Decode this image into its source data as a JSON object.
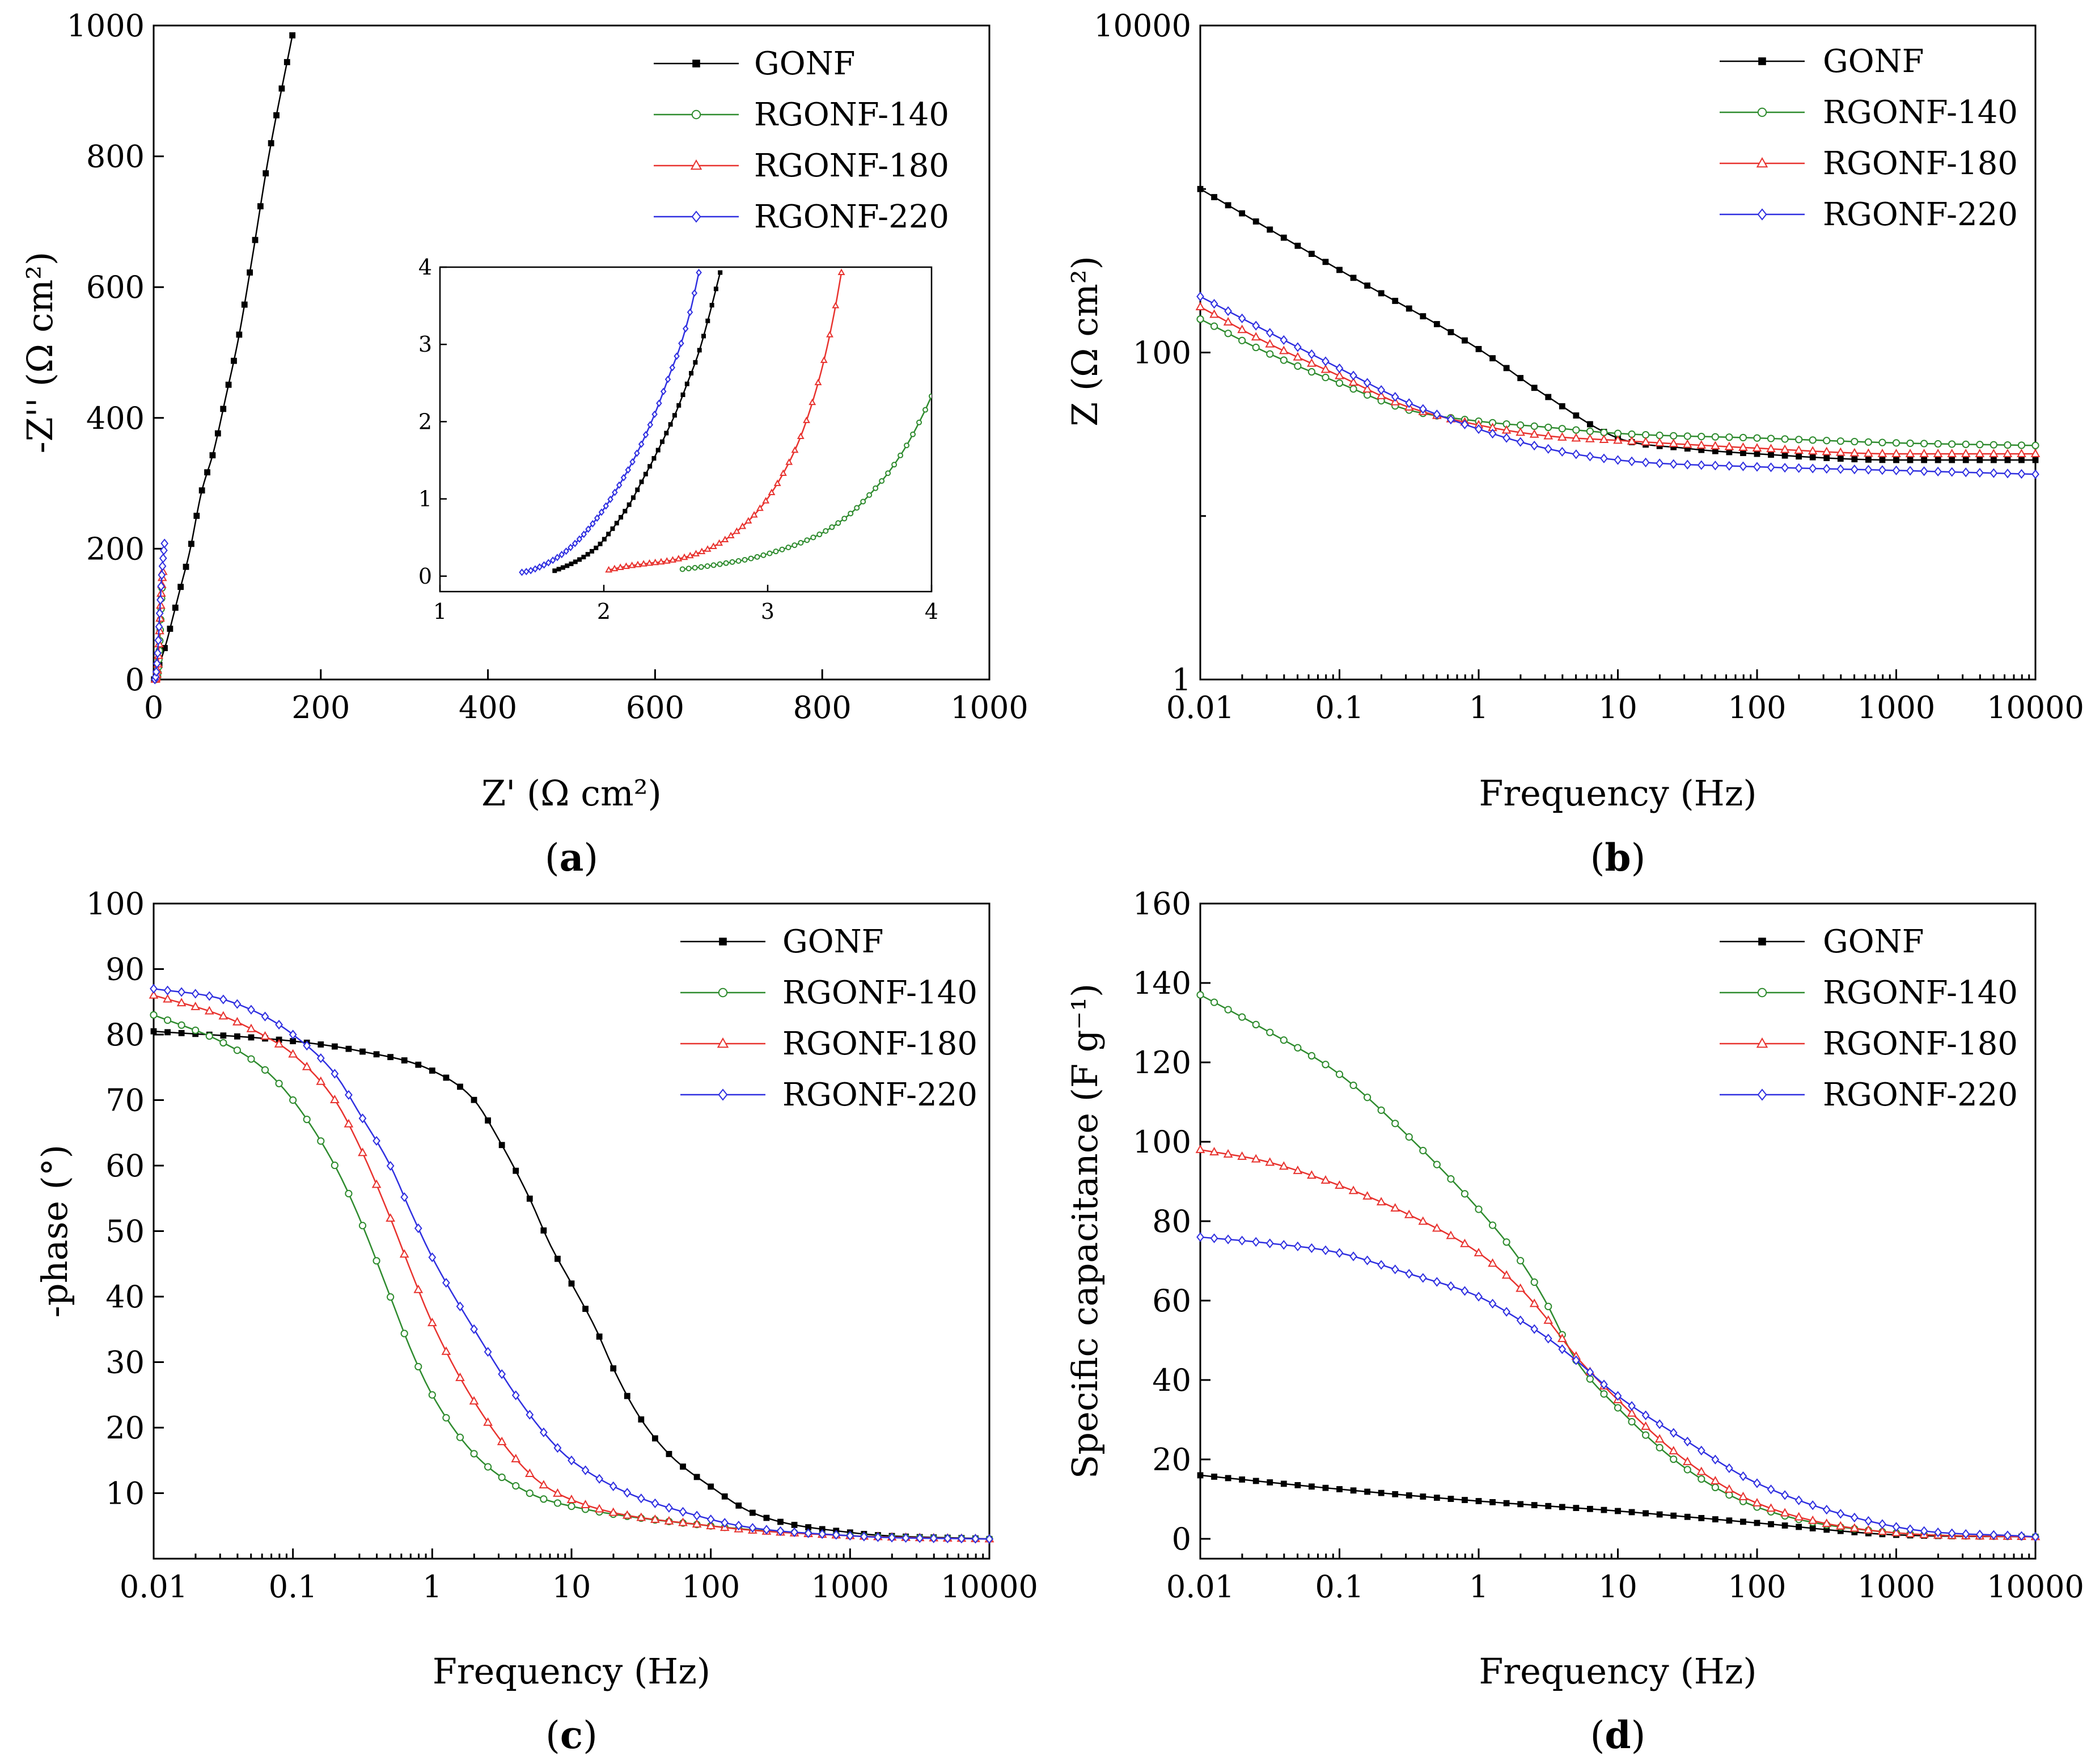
{
  "colors": {
    "GONF": "#000000",
    "RGONF-140": "#2e8b2e",
    "RGONF-180": "#e8322e",
    "RGONF-220": "#2f2fe0"
  },
  "chart_data": [
    {
      "panel": "a",
      "panel_label": "a",
      "type": "scatter",
      "title": "",
      "xlabel": "Z' (Ω cm²)",
      "ylabel": "-Z'' (Ω cm²)",
      "xlim": [
        0,
        1000
      ],
      "ylim": [
        0,
        1000
      ],
      "xticks": [
        "0",
        "200",
        "400",
        "600",
        "800",
        "1000"
      ],
      "yticks": [
        "0",
        "200",
        "400",
        "600",
        "800",
        "1000"
      ],
      "legend_position": "top-right",
      "series": [
        {
          "name": "GONF",
          "marker": "square",
          "x": [
            0.5,
            2,
            5,
            10,
            16,
            23,
            32,
            43,
            57,
            72,
            86,
            102,
            118,
            137,
            166
          ],
          "y": [
            0.2,
            5,
            15,
            35,
            60,
            95,
            140,
            195,
            285,
            350,
            430,
            525,
            645,
            795,
            985
          ]
        },
        {
          "name": "RGONF-140",
          "marker": "circle",
          "x": [
            2.5,
            3,
            4,
            5,
            6,
            7,
            8,
            9,
            10
          ],
          "y": [
            0.1,
            0.5,
            2,
            8,
            25,
            50,
            80,
            110,
            140
          ]
        },
        {
          "name": "RGONF-180",
          "marker": "triangle",
          "x": [
            2,
            3,
            4,
            5,
            6,
            7,
            8,
            9,
            10,
            11
          ],
          "y": [
            0.1,
            2,
            8,
            20,
            40,
            70,
            100,
            130,
            150,
            165
          ]
        },
        {
          "name": "RGONF-220",
          "marker": "diamond",
          "x": [
            1.5,
            2,
            3,
            4,
            5,
            6,
            7,
            8,
            9,
            10,
            11,
            12,
            13
          ],
          "y": [
            0.1,
            2,
            10,
            25,
            45,
            70,
            95,
            120,
            145,
            165,
            180,
            195,
            208
          ]
        }
      ],
      "inset": {
        "xlim": [
          1,
          4
        ],
        "ylim": [
          -0.2,
          4
        ],
        "xticks": [
          "1",
          "2",
          "3",
          "4"
        ],
        "yticks": [
          "0",
          "1",
          "2",
          "3",
          "4"
        ],
        "series": [
          {
            "name": "GONF",
            "marker": "square",
            "x": [
              1.7,
              1.76,
              1.83,
              1.9,
              1.97,
              2.03,
              2.1,
              2.17,
              2.23,
              2.3,
              2.37,
              2.44,
              2.51,
              2.58,
              2.64,
              2.71
            ],
            "y": [
              0.07,
              0.12,
              0.19,
              0.28,
              0.4,
              0.55,
              0.75,
              0.98,
              1.22,
              1.5,
              1.8,
              2.12,
              2.5,
              2.9,
              3.35,
              3.93
            ]
          },
          {
            "name": "RGONF-140",
            "marker": "circle",
            "x": [
              2.48,
              2.6,
              2.75,
              2.9,
              3.05,
              3.2,
              3.35,
              3.5,
              3.62,
              3.74,
              3.85,
              3.95,
              4.0
            ],
            "y": [
              0.09,
              0.12,
              0.17,
              0.23,
              0.32,
              0.43,
              0.58,
              0.8,
              1.05,
              1.35,
              1.7,
              2.1,
              2.33
            ]
          },
          {
            "name": "RGONF-180",
            "marker": "triangle",
            "x": [
              2.03,
              2.12,
              2.25,
              2.4,
              2.55,
              2.7,
              2.85,
              2.98,
              3.1,
              3.2,
              3.28,
              3.35,
              3.41,
              3.45
            ],
            "y": [
              0.08,
              0.12,
              0.16,
              0.2,
              0.28,
              0.42,
              0.65,
              0.95,
              1.35,
              1.8,
              2.3,
              2.85,
              3.45,
              3.93
            ]
          },
          {
            "name": "RGONF-220",
            "marker": "diamond",
            "x": [
              1.5,
              1.55,
              1.62,
              1.7,
              1.78,
              1.86,
              1.94,
              2.02,
              2.1,
              2.18,
              2.26,
              2.33,
              2.4,
              2.47,
              2.53,
              2.58
            ],
            "y": [
              0.05,
              0.07,
              0.13,
              0.22,
              0.34,
              0.5,
              0.7,
              0.93,
              1.2,
              1.5,
              1.85,
              2.2,
              2.6,
              3.0,
              3.45,
              3.93
            ]
          }
        ]
      }
    },
    {
      "panel": "b",
      "panel_label": "b",
      "type": "line",
      "title": "",
      "xlabel": "Frequency (Hz)",
      "ylabel": "Z (Ω cm²)",
      "xscale": "log",
      "yscale": "log",
      "xlim": [
        0.01,
        10000
      ],
      "ylim": [
        1,
        10000
      ],
      "xticks": [
        "0.01",
        "0.1",
        "1",
        "10",
        "100",
        "1000",
        "10000"
      ],
      "yticks": [
        "1",
        "100",
        "10000"
      ],
      "legend_position": "top-right",
      "series": [
        {
          "name": "GONF",
          "marker": "square",
          "x": [
            0.01,
            0.1,
            1,
            3,
            10,
            30,
            100,
            1000,
            10000
          ],
          "y": [
            1000,
            320,
            105,
            55,
            30,
            26,
            24,
            22,
            22
          ]
        },
        {
          "name": "RGONF-140",
          "marker": "circle",
          "x": [
            0.01,
            0.03,
            0.1,
            0.3,
            1,
            3,
            10,
            100,
            1000,
            10000
          ],
          "y": [
            160,
            100,
            65,
            45,
            38,
            35,
            32,
            30,
            28,
            27
          ]
        },
        {
          "name": "RGONF-180",
          "marker": "triangle",
          "x": [
            0.01,
            0.03,
            0.1,
            0.3,
            1,
            3,
            10,
            100,
            1000,
            10000
          ],
          "y": [
            190,
            115,
            72,
            47,
            36,
            31,
            29,
            26,
            24,
            24
          ]
        },
        {
          "name": "RGONF-220",
          "marker": "diamond",
          "x": [
            0.01,
            0.03,
            0.1,
            0.3,
            1,
            3,
            10,
            100,
            1000,
            10000
          ],
          "y": [
            220,
            135,
            80,
            50,
            34,
            26,
            22,
            20,
            19,
            18
          ]
        }
      ]
    },
    {
      "panel": "c",
      "panel_label": "c",
      "type": "line",
      "title": "",
      "xlabel": "Frequency (Hz)",
      "ylabel": "-phase (°)",
      "xscale": "log",
      "xlim": [
        0.01,
        10000
      ],
      "ylim": [
        0,
        100
      ],
      "xticks": [
        "0.01",
        "0.1",
        "1",
        "10",
        "100",
        "1000",
        "10000"
      ],
      "yticks": [
        "10",
        "20",
        "30",
        "40",
        "50",
        "60",
        "70",
        "80",
        "90",
        "100"
      ],
      "legend_position": "top-right",
      "series": [
        {
          "name": "GONF",
          "marker": "square",
          "x": [
            0.01,
            0.1,
            0.3,
            1,
            2,
            3,
            5,
            7,
            10,
            15,
            20,
            30,
            50,
            100,
            200,
            1000,
            10000
          ],
          "y": [
            80.5,
            79,
            77.5,
            74.5,
            70,
            64,
            55,
            48,
            42,
            35,
            29,
            22,
            16,
            11,
            7,
            4,
            3
          ]
        },
        {
          "name": "RGONF-140",
          "marker": "circle",
          "x": [
            0.01,
            0.03,
            0.06,
            0.1,
            0.2,
            0.3,
            0.5,
            0.7,
            1,
            2,
            5,
            10,
            100,
            1000,
            10000
          ],
          "y": [
            83,
            79,
            75,
            70,
            60,
            52,
            40,
            32,
            25,
            16,
            10,
            8,
            5,
            3.5,
            3
          ]
        },
        {
          "name": "RGONF-180",
          "marker": "triangle",
          "x": [
            0.01,
            0.03,
            0.06,
            0.1,
            0.2,
            0.3,
            0.5,
            0.7,
            1,
            2,
            5,
            10,
            100,
            1000,
            10000
          ],
          "y": [
            86,
            83,
            80,
            77,
            70,
            63,
            52,
            44,
            36,
            24,
            13,
            9,
            5,
            3.5,
            3
          ]
        },
        {
          "name": "RGONF-220",
          "marker": "diamond",
          "x": [
            0.01,
            0.03,
            0.06,
            0.1,
            0.2,
            0.3,
            0.5,
            0.7,
            1,
            2,
            5,
            10,
            100,
            1000,
            10000
          ],
          "y": [
            87,
            85.5,
            83,
            80,
            74,
            68,
            60,
            53,
            46,
            35,
            22,
            15,
            6,
            3.5,
            3
          ]
        }
      ]
    },
    {
      "panel": "d",
      "panel_label": "d",
      "type": "line",
      "title": "",
      "xlabel": "Frequency (Hz)",
      "ylabel": "Specific capacitance (F g⁻¹)",
      "xscale": "log",
      "xlim": [
        0.01,
        10000
      ],
      "ylim": [
        -5,
        160
      ],
      "xticks": [
        "0.01",
        "0.1",
        "1",
        "10",
        "100",
        "1000",
        "10000"
      ],
      "yticks": [
        "0",
        "20",
        "40",
        "60",
        "80",
        "100",
        "120",
        "140",
        "160"
      ],
      "legend_position": "top-right",
      "series": [
        {
          "name": "GONF",
          "marker": "square",
          "x": [
            0.01,
            0.1,
            1,
            10,
            100,
            1000,
            10000
          ],
          "y": [
            16,
            12.5,
            9.5,
            7,
            4,
            1,
            0.5
          ]
        },
        {
          "name": "RGONF-140",
          "marker": "circle",
          "x": [
            0.01,
            0.03,
            0.1,
            0.3,
            1,
            2,
            3,
            5,
            10,
            30,
            100,
            1000,
            10000
          ],
          "y": [
            137,
            128,
            117,
            102,
            83,
            70,
            60,
            45,
            33,
            18,
            8,
            1.5,
            0.5
          ]
        },
        {
          "name": "RGONF-180",
          "marker": "triangle",
          "x": [
            0.01,
            0.03,
            0.1,
            0.3,
            1,
            2,
            3,
            5,
            10,
            30,
            100,
            1000,
            10000
          ],
          "y": [
            98,
            95,
            89,
            82,
            72,
            63,
            56,
            46,
            35,
            20,
            9,
            1.5,
            0.5
          ]
        },
        {
          "name": "RGONF-220",
          "marker": "diamond",
          "x": [
            0.01,
            0.03,
            0.1,
            0.3,
            1,
            2,
            3,
            5,
            10,
            30,
            100,
            1000,
            10000
          ],
          "y": [
            76,
            74.5,
            72,
            67,
            61,
            55,
            51,
            45,
            36,
            25,
            14,
            3,
            0.5
          ]
        }
      ]
    }
  ]
}
